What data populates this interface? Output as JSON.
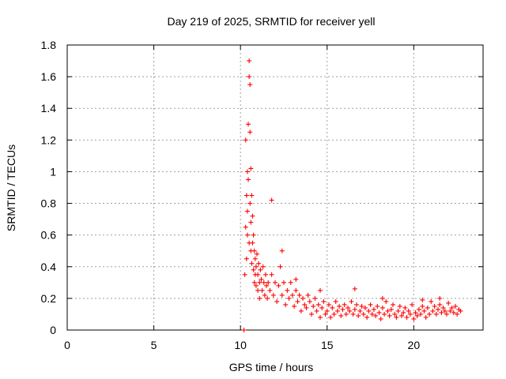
{
  "chart_data": {
    "type": "scatter",
    "title": "Day 219 of 2025, SRMTID for receiver yell",
    "xlabel": "GPS time / hours",
    "ylabel": "SRMTID / TECUs",
    "xlim": [
      0,
      24
    ],
    "ylim": [
      0,
      1.8
    ],
    "x_ticks": [
      0,
      5,
      10,
      15,
      20
    ],
    "x_tick_labels": [
      "0",
      "5",
      "10",
      "15",
      "20"
    ],
    "y_ticks": [
      0,
      0.2,
      0.4,
      0.6,
      0.8,
      1.0,
      1.2,
      1.4,
      1.6,
      1.8
    ],
    "y_tick_labels": [
      "0",
      "0.2",
      "0.4",
      "0.6",
      "0.8",
      "1",
      "1.2",
      "1.4",
      "1.6",
      "1.8"
    ],
    "grid": true,
    "marker": "+",
    "color": "#ff0000",
    "series": [
      {
        "name": "yell",
        "x": [
          10.2,
          10.25,
          10.3,
          10.3,
          10.35,
          10.35,
          10.4,
          10.4,
          10.4,
          10.45,
          10.45,
          10.5,
          10.5,
          10.5,
          10.55,
          10.55,
          10.55,
          10.6,
          10.6,
          10.6,
          10.65,
          10.65,
          10.7,
          10.7,
          10.75,
          10.75,
          10.8,
          10.8,
          10.85,
          10.85,
          10.9,
          10.9,
          10.95,
          11.0,
          11.0,
          11.05,
          11.1,
          11.1,
          11.15,
          11.2,
          11.25,
          11.3,
          11.35,
          11.4,
          11.45,
          11.5,
          11.55,
          11.6,
          11.7,
          11.8,
          11.9,
          12.0,
          12.1,
          12.2,
          12.3,
          12.4,
          12.5,
          12.6,
          12.7,
          12.8,
          12.9,
          13.0,
          13.1,
          13.2,
          13.3,
          13.4,
          13.5,
          13.6,
          13.7,
          13.8,
          13.9,
          14.0,
          14.1,
          14.2,
          14.3,
          14.4,
          14.5,
          14.6,
          14.7,
          14.8,
          14.9,
          15.0,
          15.1,
          15.2,
          15.3,
          15.4,
          15.5,
          15.6,
          15.7,
          15.8,
          15.9,
          16.0,
          16.1,
          16.2,
          16.3,
          16.4,
          16.5,
          16.6,
          16.7,
          16.8,
          16.9,
          17.0,
          17.1,
          17.2,
          17.3,
          17.4,
          17.5,
          17.6,
          17.7,
          17.8,
          17.9,
          18.0,
          18.1,
          18.2,
          18.3,
          18.4,
          18.5,
          18.6,
          18.7,
          18.8,
          18.9,
          19.0,
          19.1,
          19.2,
          19.3,
          19.4,
          19.5,
          19.6,
          19.7,
          19.8,
          19.9,
          20.0,
          20.1,
          20.2,
          20.3,
          20.4,
          20.5,
          20.6,
          20.7,
          20.8,
          20.9,
          21.0,
          21.1,
          21.2,
          21.3,
          21.4,
          21.5,
          21.6,
          21.7,
          21.8,
          21.9,
          22.0,
          22.1,
          22.2,
          22.3,
          22.4,
          22.5,
          22.6,
          22.7,
          11.8,
          12.4,
          13.2,
          14.6,
          16.6,
          18.2,
          20.5,
          21.5
        ],
        "y": [
          0.0,
          0.35,
          0.65,
          1.2,
          0.85,
          0.45,
          1.0,
          0.75,
          0.6,
          1.3,
          0.95,
          1.7,
          1.6,
          0.55,
          1.55,
          1.25,
          0.8,
          1.02,
          0.68,
          0.5,
          0.85,
          0.42,
          0.72,
          0.55,
          0.6,
          0.38,
          0.5,
          0.3,
          0.45,
          0.35,
          0.4,
          0.28,
          0.48,
          0.35,
          0.25,
          0.42,
          0.3,
          0.2,
          0.38,
          0.32,
          0.25,
          0.4,
          0.3,
          0.22,
          0.35,
          0.28,
          0.2,
          0.3,
          0.25,
          0.35,
          0.22,
          0.3,
          0.18,
          0.28,
          0.4,
          0.22,
          0.3,
          0.16,
          0.25,
          0.2,
          0.3,
          0.22,
          0.15,
          0.25,
          0.18,
          0.22,
          0.12,
          0.2,
          0.16,
          0.14,
          0.22,
          0.18,
          0.1,
          0.15,
          0.2,
          0.12,
          0.16,
          0.08,
          0.14,
          0.18,
          0.1,
          0.12,
          0.16,
          0.08,
          0.14,
          0.1,
          0.18,
          0.12,
          0.15,
          0.09,
          0.13,
          0.16,
          0.1,
          0.14,
          0.12,
          0.18,
          0.1,
          0.13,
          0.16,
          0.09,
          0.12,
          0.15,
          0.1,
          0.14,
          0.08,
          0.12,
          0.16,
          0.1,
          0.13,
          0.09,
          0.15,
          0.11,
          0.07,
          0.14,
          0.1,
          0.18,
          0.12,
          0.09,
          0.13,
          0.16,
          0.1,
          0.08,
          0.12,
          0.15,
          0.09,
          0.11,
          0.14,
          0.08,
          0.12,
          0.1,
          0.16,
          0.07,
          0.11,
          0.09,
          0.13,
          0.1,
          0.15,
          0.12,
          0.08,
          0.14,
          0.1,
          0.18,
          0.12,
          0.15,
          0.1,
          0.13,
          0.16,
          0.11,
          0.14,
          0.12,
          0.1,
          0.17,
          0.12,
          0.14,
          0.11,
          0.15,
          0.1,
          0.13,
          0.12,
          0.82,
          0.5,
          0.32,
          0.25,
          0.26,
          0.2,
          0.19,
          0.2
        ]
      }
    ]
  }
}
